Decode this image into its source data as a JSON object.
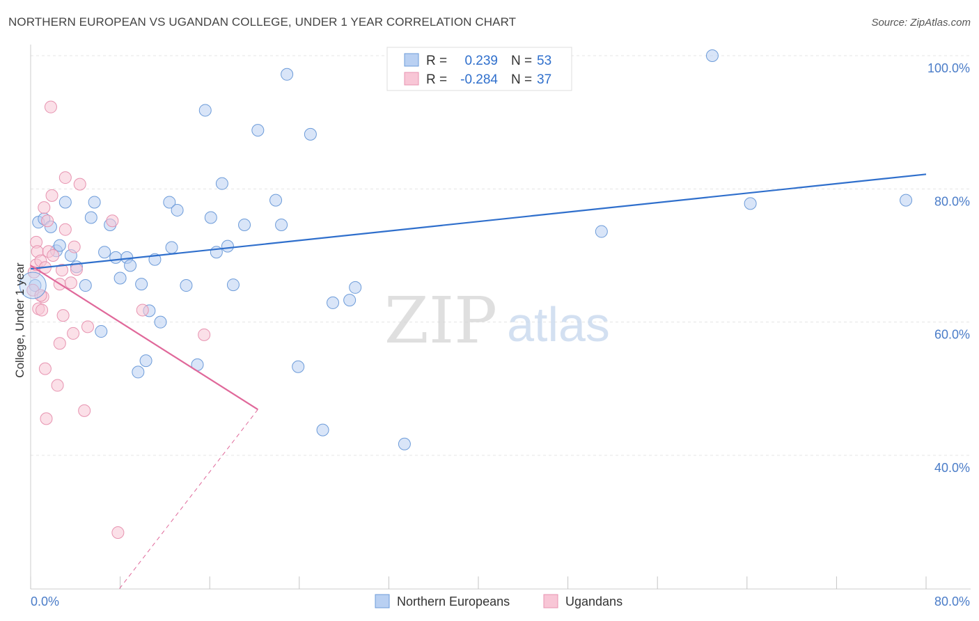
{
  "header": {
    "title": "NORTHERN EUROPEAN VS UGANDAN COLLEGE, UNDER 1 YEAR CORRELATION CHART",
    "source": "Source: ZipAtlas.com"
  },
  "watermark": {
    "zip": "ZIP",
    "atlas": "atlas"
  },
  "colors": {
    "blue": "#6c9bd9",
    "blue_fill": "#b9d0f2",
    "blue_line": "#2f6fcc",
    "pink": "#e793b0",
    "pink_fill": "#f8c6d6",
    "pink_line": "#e0689a",
    "tick_label": "#4a7cc8"
  },
  "legend_box": {
    "rows": [
      {
        "r_label": "R =",
        "r_value": "0.239",
        "n_label": "N =",
        "n_value": "53"
      },
      {
        "r_label": "R =",
        "r_value": "-0.284",
        "n_label": "N =",
        "n_value": "37"
      }
    ]
  },
  "chart_data": {
    "type": "scatter",
    "title": "NORTHERN EUROPEAN VS UGANDAN COLLEGE, UNDER 1 YEAR CORRELATION CHART",
    "xlabel": "",
    "ylabel": "College, Under 1 year",
    "xlim": [
      0,
      80
    ],
    "ylim": [
      20,
      102
    ],
    "x_tick_labels": [
      "0.0%",
      "80.0%"
    ],
    "y_ticks": [
      40,
      60,
      80,
      100
    ],
    "y_tick_labels": [
      "40.0%",
      "60.0%",
      "80.0%",
      "100.0%"
    ],
    "grid": true,
    "legend_position": "bottom-center",
    "series": [
      {
        "name": "Northern Europeans",
        "r": 0.239,
        "n": 53,
        "trend": {
          "x": [
            0,
            80
          ],
          "y": [
            68.0,
            82.2
          ],
          "dashed_after": null
        },
        "points": [
          [
            0.4,
            65.5
          ],
          [
            0.7,
            75.0
          ],
          [
            1.2,
            75.5
          ],
          [
            1.8,
            74.3
          ],
          [
            2.3,
            70.7
          ],
          [
            2.6,
            71.5
          ],
          [
            3.1,
            78.0
          ],
          [
            3.6,
            70.0
          ],
          [
            4.1,
            68.3
          ],
          [
            4.9,
            65.5
          ],
          [
            5.4,
            75.7
          ],
          [
            5.7,
            78.0
          ],
          [
            6.3,
            58.6
          ],
          [
            6.6,
            70.5
          ],
          [
            7.1,
            74.6
          ],
          [
            7.6,
            69.7
          ],
          [
            8.0,
            66.6
          ],
          [
            8.6,
            69.7
          ],
          [
            8.9,
            68.5
          ],
          [
            9.6,
            52.5
          ],
          [
            9.9,
            65.7
          ],
          [
            10.3,
            54.2
          ],
          [
            10.6,
            61.7
          ],
          [
            11.1,
            69.4
          ],
          [
            11.6,
            60.0
          ],
          [
            12.4,
            78.0
          ],
          [
            12.6,
            71.2
          ],
          [
            13.1,
            76.8
          ],
          [
            13.9,
            65.5
          ],
          [
            14.9,
            53.6
          ],
          [
            15.6,
            91.8
          ],
          [
            16.1,
            75.7
          ],
          [
            16.6,
            70.5
          ],
          [
            17.1,
            80.8
          ],
          [
            17.6,
            71.4
          ],
          [
            18.1,
            65.6
          ],
          [
            19.1,
            74.6
          ],
          [
            20.3,
            88.8
          ],
          [
            21.9,
            78.3
          ],
          [
            22.4,
            74.6
          ],
          [
            22.9,
            97.2
          ],
          [
            23.9,
            53.3
          ],
          [
            25.0,
            88.2
          ],
          [
            26.1,
            43.8
          ],
          [
            27.0,
            62.9
          ],
          [
            28.5,
            63.3
          ],
          [
            29.0,
            65.2
          ],
          [
            33.4,
            41.7
          ],
          [
            40.5,
            100.0
          ],
          [
            51.0,
            73.6
          ],
          [
            60.9,
            100.0
          ],
          [
            64.3,
            77.8
          ],
          [
            78.2,
            78.3
          ]
        ]
      },
      {
        "name": "Ugandans",
        "r": -0.284,
        "n": 37,
        "trend": {
          "x": [
            0,
            46
          ],
          "y": [
            68.5,
            19.5
          ],
          "solid_until_x": 20.3
        },
        "points": [
          [
            0.2,
            64.8
          ],
          [
            0.3,
            67.5
          ],
          [
            0.5,
            68.6
          ],
          [
            0.5,
            72.0
          ],
          [
            0.6,
            70.6
          ],
          [
            0.7,
            62.0
          ],
          [
            0.9,
            69.2
          ],
          [
            1.0,
            61.8
          ],
          [
            1.1,
            63.8
          ],
          [
            1.2,
            77.2
          ],
          [
            1.3,
            53.0
          ],
          [
            1.4,
            45.5
          ],
          [
            1.5,
            75.2
          ],
          [
            1.6,
            70.6
          ],
          [
            1.8,
            92.3
          ],
          [
            1.9,
            79.0
          ],
          [
            2.4,
            50.5
          ],
          [
            2.6,
            65.7
          ],
          [
            2.6,
            56.8
          ],
          [
            2.8,
            67.8
          ],
          [
            2.9,
            61.0
          ],
          [
            3.1,
            73.9
          ],
          [
            3.1,
            81.7
          ],
          [
            3.6,
            65.9
          ],
          [
            3.8,
            58.3
          ],
          [
            3.9,
            71.3
          ],
          [
            4.1,
            67.9
          ],
          [
            4.4,
            80.7
          ],
          [
            4.8,
            46.7
          ],
          [
            5.1,
            59.3
          ],
          [
            7.3,
            75.2
          ],
          [
            7.8,
            28.4
          ],
          [
            10.0,
            61.8
          ],
          [
            15.5,
            58.1
          ],
          [
            0.9,
            64.0
          ],
          [
            2.0,
            70.0
          ],
          [
            1.3,
            68.2
          ]
        ]
      }
    ]
  }
}
